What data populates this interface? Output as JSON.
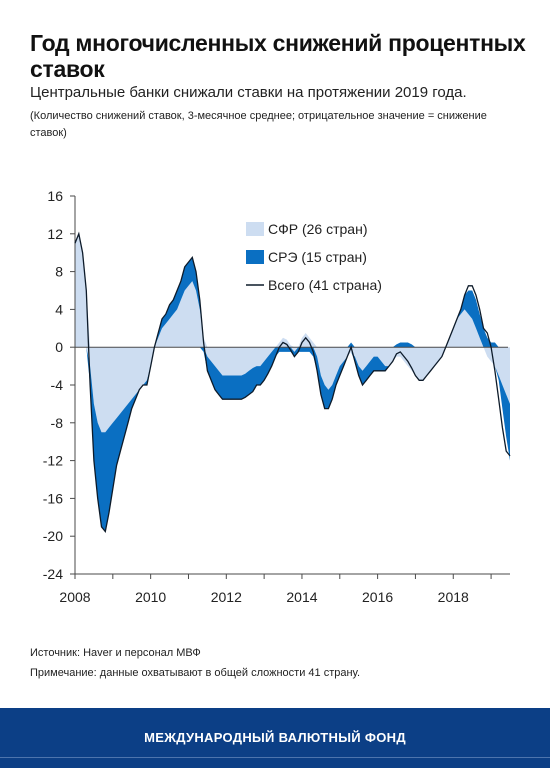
{
  "header": {
    "title": "Год многочисленных снижений процентных ставок",
    "subtitle": "Центральные банки снижали ставки на протяжении 2019 года.",
    "note": "(Количество снижений ставок, 3-месячное среднее; отрицательное значение = снижение ставок)"
  },
  "footer": {
    "source": "Источник: Haver и персонал МВФ",
    "note": "Примечание: данные охватывают в общей сложности 41 страну.",
    "brand": "МЕЖДУНАРОДНЫЙ ВАЛЮТНЫЙ ФОНД"
  },
  "colors": {
    "afe": "#cdddf1",
    "em": "#0a6fc2",
    "total": "#0d1b2a",
    "axis": "#4a4a4a",
    "footer": "#0c3f86"
  },
  "chart_data": {
    "type": "area",
    "x_range": [
      2008,
      2019.5
    ],
    "ylim": [
      -24,
      16
    ],
    "yticks": [
      "16",
      "12",
      "8",
      "4",
      "0",
      "-4",
      "-8",
      "-12",
      "-16",
      "-20",
      "-24"
    ],
    "xticks": [
      "2008",
      "2010",
      "2012",
      "2014",
      "2016",
      "2018"
    ],
    "legend_position": "top-right",
    "x": [
      2008.0,
      2008.1,
      2008.2,
      2008.3,
      2008.4,
      2008.5,
      2008.6,
      2008.7,
      2008.8,
      2008.9,
      2009.0,
      2009.1,
      2009.2,
      2009.3,
      2009.4,
      2009.5,
      2009.6,
      2009.7,
      2009.8,
      2009.9,
      2010.0,
      2010.1,
      2010.2,
      2010.3,
      2010.4,
      2010.5,
      2010.6,
      2010.7,
      2010.8,
      2010.9,
      2011.0,
      2011.1,
      2011.2,
      2011.3,
      2011.4,
      2011.5,
      2011.6,
      2011.7,
      2011.8,
      2011.9,
      2012.0,
      2012.1,
      2012.2,
      2012.3,
      2012.4,
      2012.5,
      2012.6,
      2012.7,
      2012.8,
      2012.9,
      2013.0,
      2013.1,
      2013.2,
      2013.3,
      2013.4,
      2013.5,
      2013.6,
      2013.7,
      2013.8,
      2013.9,
      2014.0,
      2014.1,
      2014.2,
      2014.3,
      2014.4,
      2014.5,
      2014.6,
      2014.7,
      2014.8,
      2014.9,
      2015.0,
      2015.1,
      2015.2,
      2015.3,
      2015.4,
      2015.5,
      2015.6,
      2015.7,
      2015.8,
      2015.9,
      2016.0,
      2016.1,
      2016.2,
      2016.3,
      2016.4,
      2016.5,
      2016.6,
      2016.7,
      2016.8,
      2016.9,
      2017.0,
      2017.1,
      2017.2,
      2017.3,
      2017.4,
      2017.5,
      2017.6,
      2017.7,
      2017.8,
      2017.9,
      2018.0,
      2018.1,
      2018.2,
      2018.3,
      2018.4,
      2018.5,
      2018.6,
      2018.7,
      2018.8,
      2018.9,
      2019.0,
      2019.1,
      2019.2,
      2019.3,
      2019.4,
      2019.5
    ],
    "series": [
      {
        "name": "СФР (26 стран)",
        "values": [
          11,
          12,
          10,
          6,
          -2,
          -6,
          -8,
          -9,
          -9,
          -8.5,
          -8,
          -7.5,
          -7,
          -6.5,
          -6,
          -5.5,
          -5,
          -4.5,
          -4,
          -3.5,
          -2,
          0,
          1,
          2,
          2.5,
          3,
          3.5,
          4,
          5,
          6,
          6.5,
          7,
          6,
          4,
          1,
          -1,
          -1.5,
          -2,
          -2.5,
          -3,
          -3,
          -3,
          -3,
          -3,
          -3,
          -2.8,
          -2.5,
          -2.2,
          -2,
          -2,
          -1.5,
          -1,
          -0.5,
          0,
          0.5,
          1,
          0.8,
          0.2,
          -0.5,
          0,
          1,
          1.5,
          1,
          0.5,
          -1,
          -3,
          -4,
          -4.5,
          -4,
          -3,
          -2,
          -1.5,
          -1,
          -0.5,
          -1,
          -2,
          -2.5,
          -2,
          -1.5,
          -1,
          -1,
          -1.5,
          -2,
          -2,
          -1.5,
          -1,
          -1,
          -1.5,
          -2,
          -2.5,
          -3,
          -3.5,
          -3.5,
          -3,
          -2.5,
          -2,
          -1.5,
          -1,
          0,
          1,
          2,
          3,
          3.5,
          4,
          3.5,
          3,
          2,
          1,
          0,
          -1,
          -1.5,
          -2,
          -3,
          -4,
          -5,
          -6
        ]
      },
      {
        "name": "СРЭ (15 стран)",
        "values": [
          0,
          0,
          0,
          0,
          -2,
          -6,
          -8,
          -10,
          -10.5,
          -9,
          -7,
          -5,
          -4,
          -3,
          -2,
          -1,
          -0.5,
          0,
          0,
          -0.5,
          0,
          0,
          0.5,
          1,
          1,
          1.5,
          1.5,
          2,
          2,
          2.5,
          2.5,
          2.5,
          2,
          1,
          -0.5,
          -1.5,
          -2,
          -2.5,
          -2.5,
          -2.5,
          -2.5,
          -2.5,
          -2.5,
          -2.5,
          -2.5,
          -2.5,
          -2.5,
          -2.5,
          -2,
          -2,
          -2,
          -1.8,
          -1.5,
          -1,
          -0.5,
          -0.5,
          -0.5,
          -0.5,
          -0.5,
          -0.5,
          -0.5,
          -0.5,
          -0.5,
          -1,
          -1.5,
          -2,
          -2.5,
          -2,
          -1.5,
          -1,
          -1,
          -0.5,
          0,
          0.5,
          -0.5,
          -1,
          -1.5,
          -1.5,
          -1.5,
          -1.5,
          -1.5,
          -1,
          -0.5,
          0,
          0,
          0.3,
          0.5,
          0.5,
          0.5,
          0.3,
          0,
          0,
          0,
          0,
          0,
          0,
          0,
          0,
          0,
          0,
          0,
          0,
          0.5,
          1.5,
          2.5,
          3,
          3,
          2.5,
          2,
          1,
          0.5,
          0.5,
          -0.5,
          -2.5,
          -4.5,
          -6
        ]
      },
      {
        "name": "Всего (41 страна)",
        "values": [
          11,
          12,
          10,
          6,
          -4,
          -12,
          -16,
          -19,
          -19.5,
          -17.5,
          -15,
          -12.5,
          -11,
          -9.5,
          -8,
          -6.5,
          -5.5,
          -4.5,
          -4,
          -4,
          -2,
          0,
          1.5,
          3,
          3.5,
          4.5,
          5,
          6,
          7,
          8.5,
          9,
          9.5,
          8,
          5,
          0.5,
          -2.5,
          -3.5,
          -4.5,
          -5,
          -5.5,
          -5.5,
          -5.5,
          -5.5,
          -5.5,
          -5.5,
          -5.3,
          -5,
          -4.7,
          -4,
          -4,
          -3.5,
          -2.8,
          -2,
          -1,
          0,
          0.5,
          0.3,
          -0.3,
          -1,
          -0.5,
          0.5,
          1,
          0.5,
          -0.5,
          -2.5,
          -5,
          -6.5,
          -6.5,
          -5.5,
          -4,
          -3,
          -2,
          -1,
          0,
          -1.5,
          -3,
          -4,
          -3.5,
          -3,
          -2.5,
          -2.5,
          -2.5,
          -2.5,
          -2,
          -1.5,
          -0.7,
          -0.5,
          -1,
          -1.5,
          -2.2,
          -3,
          -3.5,
          -3.5,
          -3,
          -2.5,
          -2,
          -1.5,
          -1,
          0,
          1,
          2,
          3,
          4,
          5.5,
          6.5,
          6.5,
          5.5,
          4,
          2,
          1.5,
          0,
          -2.5,
          -5.5,
          -8.5,
          -11,
          -11.5
        ]
      }
    ]
  }
}
